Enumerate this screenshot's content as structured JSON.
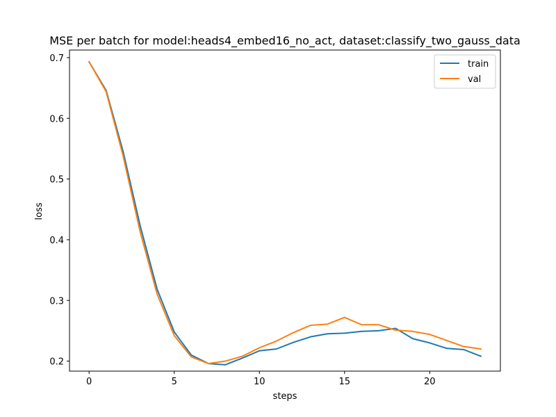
{
  "chart_data": {
    "type": "line",
    "title": "MSE per batch for model:heads4_embed16_no_act, dataset:classify_two_gauss_data",
    "xlabel": "steps",
    "ylabel": "loss",
    "xlim": [
      -1.15,
      24.15
    ],
    "ylim": [
      0.1835,
      0.7125
    ],
    "xticks": [
      0,
      5,
      10,
      15,
      20
    ],
    "yticks": [
      0.2,
      0.3,
      0.4,
      0.5,
      0.6,
      0.7
    ],
    "xtick_labels": [
      "0",
      "5",
      "10",
      "15",
      "20"
    ],
    "ytick_labels": [
      "0.2",
      "0.3",
      "0.4",
      "0.5",
      "0.6",
      "0.7"
    ],
    "grid": false,
    "legend_position": "top-right",
    "x": [
      0,
      1,
      2,
      3,
      4,
      5,
      6,
      7,
      8,
      9,
      10,
      11,
      12,
      13,
      14,
      15,
      16,
      17,
      18,
      19,
      20,
      21,
      22,
      23
    ],
    "series": [
      {
        "name": "train",
        "color": "#1f77b4",
        "values": [
          0.693,
          0.646,
          0.545,
          0.423,
          0.318,
          0.248,
          0.21,
          0.196,
          0.194,
          0.205,
          0.217,
          0.22,
          0.231,
          0.24,
          0.245,
          0.246,
          0.249,
          0.25,
          0.254,
          0.237,
          0.23,
          0.221,
          0.219,
          0.208
        ]
      },
      {
        "name": "val",
        "color": "#ff7f0e",
        "values": [
          0.693,
          0.644,
          0.538,
          0.413,
          0.31,
          0.242,
          0.207,
          0.196,
          0.2,
          0.208,
          0.222,
          0.233,
          0.247,
          0.259,
          0.261,
          0.272,
          0.26,
          0.26,
          0.251,
          0.249,
          0.244,
          0.234,
          0.224,
          0.22
        ]
      }
    ]
  }
}
